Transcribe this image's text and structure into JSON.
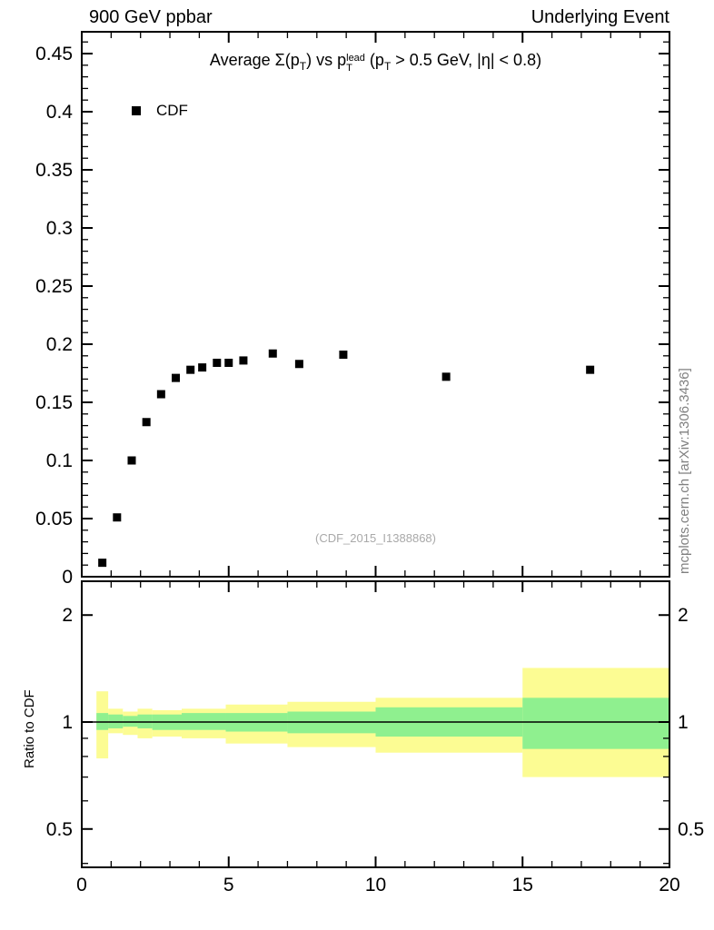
{
  "header": {
    "left": "900 GeV ppbar",
    "right": "Underlying Event"
  },
  "watermark": "(CDF_2015_I1388868)",
  "side_note": "mcplots.cern.ch [arXiv:1306.3436]",
  "colors": {
    "band_outer": "#fcfc93",
    "band_inner": "#8ff08f",
    "marker": "#000000",
    "frame": "#000000",
    "ref_line": "#000000",
    "watermark": "#a9a9a9",
    "side_note": "#808080"
  },
  "chart_data": {
    "type": "scatter",
    "title_segments": [
      {
        "s": "n",
        "t": "Average "
      },
      {
        "s": "n",
        "t": "Σ(p"
      },
      {
        "s": "sub",
        "t": "T"
      },
      {
        "s": "n",
        "t": ") vs p"
      },
      {
        "s": "stack",
        "sup": "lead",
        "sub": "T"
      },
      {
        "s": "n",
        "t": " (p"
      },
      {
        "s": "sub",
        "t": "T"
      },
      {
        "s": "n",
        "t": " > 0.5 GeV, |η| < 0.8)"
      }
    ],
    "legend_label": "CDF",
    "xticks_major": [
      0,
      5,
      10,
      15,
      20
    ],
    "xtick_labels": [
      "0",
      "5",
      "10",
      "15",
      "20"
    ],
    "xtick_minor_step": 1,
    "top_panel": {
      "xlim": [
        0,
        20
      ],
      "ylim": [
        0,
        0.46875
      ],
      "yticks_major": [
        0,
        0.05,
        0.1,
        0.15,
        0.2,
        0.25,
        0.3,
        0.35,
        0.4,
        0.45
      ],
      "ytick_labels": [
        "0",
        "0.05",
        "0.1",
        "0.15",
        "0.2",
        "0.25",
        "0.3",
        "0.35",
        "0.4",
        "0.45"
      ],
      "ytick_minor_step": 0.01,
      "series": [
        {
          "name": "CDF",
          "marker": "square",
          "color": "#000000",
          "x": [
            0.7,
            1.2,
            1.7,
            2.2,
            2.7,
            3.2,
            3.7,
            4.1,
            4.6,
            5.0,
            5.5,
            6.5,
            7.4,
            8.9,
            12.4,
            17.3
          ],
          "y": [
            0.012,
            0.051,
            0.1,
            0.133,
            0.157,
            0.171,
            0.178,
            0.18,
            0.184,
            0.184,
            0.186,
            0.192,
            0.183,
            0.191,
            0.172,
            0.178
          ]
        }
      ]
    },
    "bottom_panel": {
      "ylabel": "Ratio to CDF",
      "yscale": "log",
      "ylim": [
        0.39,
        2.49
      ],
      "yticks_major": [
        0.5,
        1,
        2
      ],
      "ytick_labels": [
        "0.5",
        "1",
        "2"
      ],
      "yticks_minor": [
        0.4,
        0.6,
        0.7,
        0.8,
        0.9
      ],
      "ref_line": 1.0,
      "bands": [
        {
          "x": [
            0.5,
            0.9
          ],
          "outer": [
            0.79,
            1.22
          ],
          "inner": [
            0.95,
            1.06
          ]
        },
        {
          "x": [
            0.9,
            1.4
          ],
          "outer": [
            0.93,
            1.09
          ],
          "inner": [
            0.96,
            1.05
          ]
        },
        {
          "x": [
            1.4,
            1.9
          ],
          "outer": [
            0.92,
            1.07
          ],
          "inner": [
            0.97,
            1.04
          ]
        },
        {
          "x": [
            1.9,
            2.4
          ],
          "outer": [
            0.9,
            1.09
          ],
          "inner": [
            0.96,
            1.05
          ]
        },
        {
          "x": [
            2.4,
            3.4
          ],
          "outer": [
            0.91,
            1.08
          ],
          "inner": [
            0.95,
            1.05
          ]
        },
        {
          "x": [
            3.4,
            4.9
          ],
          "outer": [
            0.9,
            1.09
          ],
          "inner": [
            0.95,
            1.06
          ]
        },
        {
          "x": [
            4.9,
            7.0
          ],
          "outer": [
            0.87,
            1.12
          ],
          "inner": [
            0.94,
            1.06
          ]
        },
        {
          "x": [
            7.0,
            10.0
          ],
          "outer": [
            0.85,
            1.14
          ],
          "inner": [
            0.93,
            1.07
          ]
        },
        {
          "x": [
            10.0,
            15.0
          ],
          "outer": [
            0.82,
            1.17
          ],
          "inner": [
            0.91,
            1.1
          ]
        },
        {
          "x": [
            15.0,
            20.0
          ],
          "outer": [
            0.7,
            1.42
          ],
          "inner": [
            0.84,
            1.17
          ]
        }
      ]
    }
  }
}
